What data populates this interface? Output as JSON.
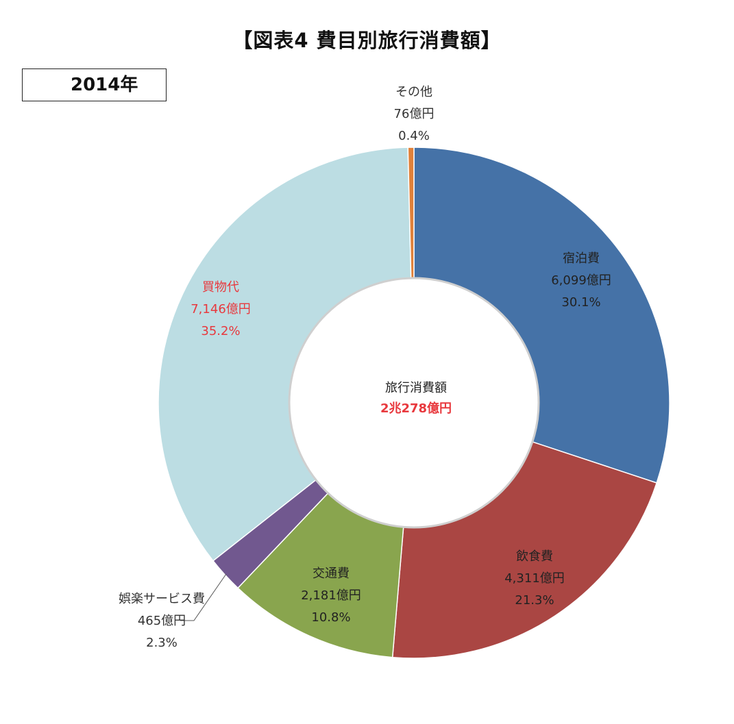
{
  "header": {
    "title": "【図表4 費目別旅行消費額】",
    "year": "2014年"
  },
  "center": {
    "label": "旅行消費額",
    "value": "2兆278億円"
  },
  "chart_data": {
    "type": "pie",
    "title": "【図表4 費目別旅行消費額】",
    "subtitle": "2014年",
    "donut": true,
    "slices": [
      {
        "name": "宿泊費",
        "amount": 6099,
        "amount_label": "6,099億円",
        "percent": 30.1,
        "percent_label": "30.1%",
        "color": "#4572a7",
        "label_color": "#222222"
      },
      {
        "name": "飲食費",
        "amount": 4311,
        "amount_label": "4,311億円",
        "percent": 21.3,
        "percent_label": "21.3%",
        "color": "#aa4643",
        "label_color": "#222222"
      },
      {
        "name": "交通費",
        "amount": 2181,
        "amount_label": "2,181億円",
        "percent": 10.8,
        "percent_label": "10.8%",
        "color": "#89a54e",
        "label_color": "#222222"
      },
      {
        "name": "娯楽サービス費",
        "amount": 465,
        "amount_label": "465億円",
        "percent": 2.3,
        "percent_label": "2.3%",
        "color": "#71588f",
        "label_color": "#333333"
      },
      {
        "name": "買物代",
        "amount": 7146,
        "amount_label": "7,146億円",
        "percent": 35.2,
        "percent_label": "35.2%",
        "color": "#bcdde3",
        "label_color": "#e8383d"
      },
      {
        "name": "その他",
        "amount": 76,
        "amount_label": "76億円",
        "percent": 0.4,
        "percent_label": "0.4%",
        "color": "#e0813a",
        "label_color": "#333333"
      }
    ],
    "center_label": "旅行消費額",
    "center_value": "2兆278億円",
    "center_value_color": "#e8383d"
  }
}
